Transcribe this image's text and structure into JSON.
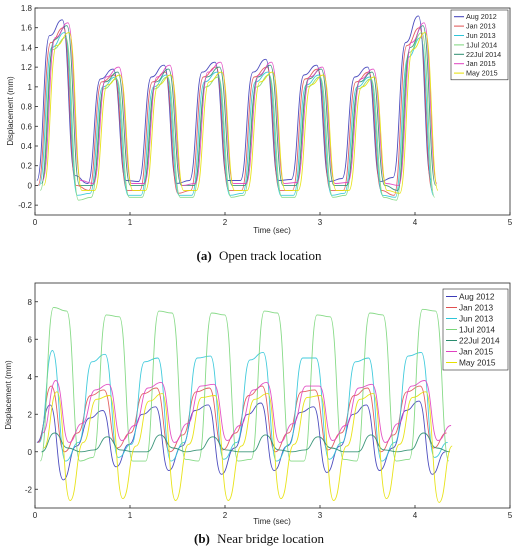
{
  "chart_data": [
    {
      "type": "line",
      "caption_label": "(a)",
      "caption_text": "Open track location",
      "xlabel": "Time (sec)",
      "ylabel": "Displacement (mm)",
      "xlim": [
        0,
        5
      ],
      "ylim": [
        -0.3,
        1.8
      ],
      "xticks": [
        "0",
        "1",
        "2",
        "3",
        "4",
        "5"
      ],
      "yticks": [
        "-0.2",
        "0",
        "0.2",
        "0.4",
        "0.6",
        "0.8",
        "1",
        "1.2",
        "1.4",
        "1.6",
        "1.8"
      ],
      "legend_position": "top-right",
      "grid": false,
      "period": 0.5,
      "duration": 4.15,
      "series": [
        {
          "name": "Aug 2012",
          "color": "#3b3bb8",
          "values": [
            0.05,
            1.52,
            1.68,
            0.1,
            0.02,
            1.08,
            1.18,
            0.05,
            0.04,
            1.1,
            1.22,
            0.02,
            0.05,
            1.15,
            1.25,
            0.05,
            0.05,
            1.15,
            1.28,
            0.05,
            0.06,
            1.12,
            1.22,
            0.04,
            0.07,
            1.1,
            1.2,
            0.04,
            0.08,
            1.45,
            1.72,
            0.06
          ]
        },
        {
          "name": "Jan 2013",
          "color": "#e05050",
          "values": [
            0.0,
            1.45,
            1.6,
            0.0,
            -0.05,
            1.05,
            1.12,
            -0.05,
            -0.05,
            1.05,
            1.15,
            -0.08,
            -0.05,
            1.1,
            1.2,
            -0.05,
            -0.05,
            1.1,
            1.2,
            -0.05,
            -0.05,
            1.08,
            1.18,
            -0.05,
            -0.05,
            1.05,
            1.15,
            -0.05,
            -0.1,
            1.42,
            1.6,
            -0.05
          ]
        },
        {
          "name": "Jun 2013",
          "color": "#2ec5d8",
          "values": [
            0.0,
            1.4,
            1.55,
            -0.1,
            -0.08,
            1.0,
            1.1,
            -0.1,
            -0.1,
            1.0,
            1.12,
            -0.1,
            -0.1,
            1.05,
            1.15,
            -0.1,
            -0.08,
            1.05,
            1.15,
            -0.1,
            -0.1,
            1.02,
            1.12,
            -0.1,
            -0.08,
            1.0,
            1.1,
            -0.1,
            -0.12,
            1.3,
            1.5,
            -0.1
          ]
        },
        {
          "name": "1Jul 2014",
          "color": "#7ad67a",
          "values": [
            -0.05,
            1.38,
            1.5,
            -0.15,
            -0.12,
            0.98,
            1.08,
            -0.12,
            -0.12,
            0.98,
            1.1,
            -0.12,
            -0.12,
            1.0,
            1.1,
            -0.12,
            -0.1,
            1.0,
            1.12,
            -0.12,
            -0.12,
            1.0,
            1.1,
            -0.12,
            -0.1,
            0.98,
            1.08,
            -0.12,
            -0.15,
            1.35,
            1.55,
            -0.12
          ]
        },
        {
          "name": "22Jul 2014",
          "color": "#2a8c6e",
          "values": [
            0.02,
            1.48,
            1.62,
            0.0,
            0.0,
            1.05,
            1.15,
            0.0,
            0.0,
            1.05,
            1.18,
            0.0,
            0.0,
            1.1,
            1.2,
            0.0,
            0.0,
            1.1,
            1.22,
            0.0,
            0.0,
            1.08,
            1.18,
            0.0,
            0.0,
            1.05,
            1.15,
            0.0,
            -0.05,
            1.4,
            1.62,
            0.0
          ]
        },
        {
          "name": "Jan 2015",
          "color": "#e040c0",
          "values": [
            0.05,
            1.5,
            1.65,
            0.05,
            0.02,
            1.1,
            1.2,
            0.02,
            0.02,
            1.1,
            1.22,
            0.0,
            0.02,
            1.15,
            1.25,
            0.02,
            0.02,
            1.12,
            1.25,
            0.02,
            0.03,
            1.1,
            1.2,
            0.02,
            0.03,
            1.08,
            1.18,
            0.02,
            0.0,
            1.45,
            1.65,
            0.02
          ]
        },
        {
          "name": "May 2015",
          "color": "#e6e000",
          "values": [
            0.0,
            1.42,
            1.55,
            -0.05,
            -0.05,
            1.02,
            1.12,
            -0.05,
            -0.05,
            1.02,
            1.12,
            -0.05,
            -0.05,
            1.05,
            1.15,
            -0.05,
            -0.05,
            1.05,
            1.15,
            -0.05,
            -0.05,
            1.02,
            1.12,
            -0.05,
            -0.05,
            1.0,
            1.1,
            -0.05,
            -0.08,
            1.38,
            1.55,
            -0.05
          ]
        }
      ]
    },
    {
      "type": "line",
      "caption_label": "(b)",
      "caption_text": "Near bridge location",
      "xlabel": "Time (sec)",
      "ylabel": "Displacement (mm)",
      "xlim": [
        0,
        5
      ],
      "ylim": [
        -3,
        9
      ],
      "xticks": [
        "0",
        "1",
        "2",
        "3",
        "4",
        "5"
      ],
      "yticks": [
        "-2",
        "0",
        "2",
        "4",
        "6",
        "8"
      ],
      "legend_position": "top-right",
      "grid": false,
      "period": 0.55,
      "duration": 4.3,
      "series": [
        {
          "name": "Aug 2012",
          "color": "#3b3bb8",
          "values": [
            0.5,
            2.5,
            -1.5,
            0.3,
            1.8,
            2.2,
            -0.8,
            0.4,
            2.0,
            2.4,
            -1.0,
            0.3,
            2.2,
            2.5,
            -1.2,
            0.2,
            2.0,
            2.6,
            -1.0,
            0.3,
            2.1,
            2.4,
            -1.1,
            0.3,
            2.0,
            2.5,
            -1.0,
            0.2,
            2.2,
            2.7,
            -1.2,
            0.0
          ]
        },
        {
          "name": "Jan 2013",
          "color": "#e05050",
          "values": [
            0.5,
            3.5,
            0.0,
            1.0,
            3.0,
            3.3,
            0.2,
            1.0,
            3.1,
            3.4,
            0.0,
            0.9,
            3.2,
            3.4,
            0.1,
            1.0,
            3.0,
            3.5,
            0.0,
            1.0,
            3.2,
            3.3,
            0.1,
            1.0,
            3.0,
            3.4,
            0.0,
            0.9,
            3.2,
            3.5,
            0.2,
            1.0
          ]
        },
        {
          "name": "Jun 2013",
          "color": "#2ec5d8",
          "values": [
            0.5,
            5.4,
            -0.5,
            0.5,
            4.8,
            5.2,
            -0.3,
            0.4,
            4.8,
            5.0,
            -0.5,
            0.5,
            5.0,
            5.1,
            -0.4,
            0.5,
            4.9,
            5.3,
            -0.5,
            0.4,
            5.0,
            5.0,
            -0.4,
            0.5,
            4.8,
            5.0,
            -0.5,
            0.5,
            5.1,
            5.3,
            -0.3,
            0.5
          ]
        },
        {
          "name": "1Jul 2014",
          "color": "#7ad67a",
          "values": [
            -0.5,
            7.7,
            7.5,
            -0.5,
            -0.3,
            7.3,
            7.2,
            -0.5,
            -0.5,
            7.5,
            7.4,
            -0.4,
            -0.5,
            7.4,
            7.3,
            -0.5,
            -0.4,
            7.5,
            7.4,
            -0.5,
            -0.5,
            7.3,
            7.2,
            -0.4,
            -0.5,
            7.4,
            7.3,
            -0.5,
            -0.4,
            7.6,
            7.5,
            -0.5
          ]
        },
        {
          "name": "22Jul 2014",
          "color": "#2a8c6e",
          "values": [
            0.0,
            1.0,
            0.2,
            0.0,
            0.1,
            0.8,
            0.1,
            0.0,
            0.0,
            0.9,
            0.2,
            0.0,
            0.1,
            0.8,
            0.1,
            0.0,
            0.0,
            0.9,
            0.1,
            0.0,
            0.1,
            0.8,
            0.2,
            0.0,
            0.0,
            0.9,
            0.1,
            0.0,
            0.1,
            1.0,
            0.2,
            0.0
          ]
        },
        {
          "name": "Jan 2015",
          "color": "#e040c0",
          "values": [
            1.0,
            3.8,
            0.5,
            1.5,
            3.3,
            3.6,
            0.6,
            1.4,
            3.4,
            3.7,
            0.5,
            1.5,
            3.5,
            3.6,
            0.6,
            1.4,
            3.3,
            3.7,
            0.5,
            1.5,
            3.5,
            3.5,
            0.6,
            1.4,
            3.4,
            3.6,
            0.5,
            1.5,
            3.5,
            3.8,
            0.6,
            1.4
          ]
        },
        {
          "name": "May 2015",
          "color": "#e6e000",
          "values": [
            0.2,
            3.2,
            -2.6,
            0.5,
            2.8,
            3.0,
            -2.5,
            0.3,
            2.7,
            3.1,
            -2.6,
            0.4,
            2.9,
            3.0,
            -2.6,
            0.3,
            2.8,
            3.1,
            -2.5,
            0.4,
            2.9,
            3.0,
            -2.6,
            0.3,
            2.8,
            3.1,
            -2.5,
            0.4,
            2.9,
            3.2,
            -2.7,
            0.3
          ]
        }
      ]
    }
  ]
}
